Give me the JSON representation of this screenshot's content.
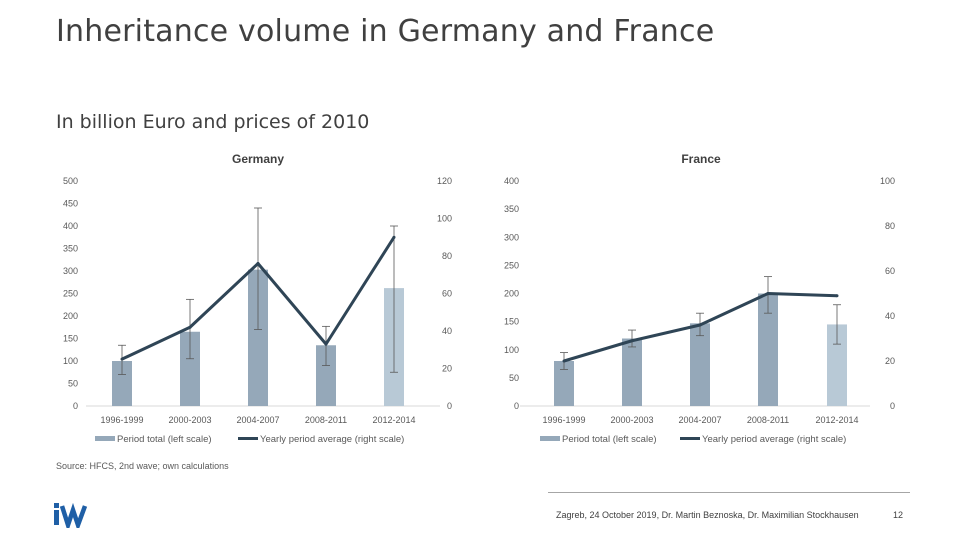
{
  "page": {
    "title": "Inheritance volume in Germany and France",
    "subtitle": "In billion Euro and prices of 2010",
    "source": "Source: HFCS, 2nd wave; own calculations",
    "footer": "Zagreb, 24 October 2019, Dr. Martin Beznoska, Dr. Maximilian Stockhausen",
    "page_number": "12",
    "logo_text": "iW"
  },
  "colors": {
    "bar": "#95a8b9",
    "bar_last": "#b8c9d6",
    "line": "#2f4556",
    "error": "#595959",
    "axis": "#d9d9d9",
    "text": "#595959"
  },
  "chart_data": [
    {
      "type": "bar",
      "title": "Germany",
      "categories": [
        "1996-1999",
        "2000-2003",
        "2004-2007",
        "2008-2011",
        "2012-2014"
      ],
      "ylim": [
        0,
        500
      ],
      "yticks": [
        0,
        50,
        100,
        150,
        200,
        250,
        300,
        350,
        400,
        450,
        500
      ],
      "y2lim": [
        0,
        120
      ],
      "y2ticks": [
        0,
        20,
        40,
        60,
        80,
        100,
        120
      ],
      "series": [
        {
          "name": "Period total (left scale)",
          "type": "bar",
          "axis": "left",
          "values": [
            100,
            165,
            303,
            135,
            262
          ],
          "error_low": [
            70,
            105,
            170,
            90,
            75
          ],
          "error_high": [
            135,
            237,
            440,
            177,
            400
          ]
        },
        {
          "name": "Yearly period average (right scale)",
          "type": "line",
          "axis": "right",
          "values": [
            25,
            42,
            76,
            33,
            90
          ]
        }
      ]
    },
    {
      "type": "bar",
      "title": "France",
      "categories": [
        "1996-1999",
        "2000-2003",
        "2004-2007",
        "2008-2011",
        "2012-2014"
      ],
      "ylim": [
        0,
        400
      ],
      "yticks": [
        0,
        50,
        100,
        150,
        200,
        250,
        300,
        350,
        400
      ],
      "y2lim": [
        0,
        100
      ],
      "y2ticks": [
        0,
        20,
        40,
        60,
        80,
        100
      ],
      "series": [
        {
          "name": "Period total (left scale)",
          "type": "bar",
          "axis": "left",
          "values": [
            80,
            120,
            147,
            200,
            145
          ],
          "error_low": [
            65,
            105,
            125,
            165,
            110
          ],
          "error_high": [
            95,
            135,
            165,
            230,
            180
          ]
        },
        {
          "name": "Yearly period average (right scale)",
          "type": "line",
          "axis": "right",
          "values": [
            20,
            29,
            36,
            50,
            49
          ]
        }
      ]
    }
  ]
}
